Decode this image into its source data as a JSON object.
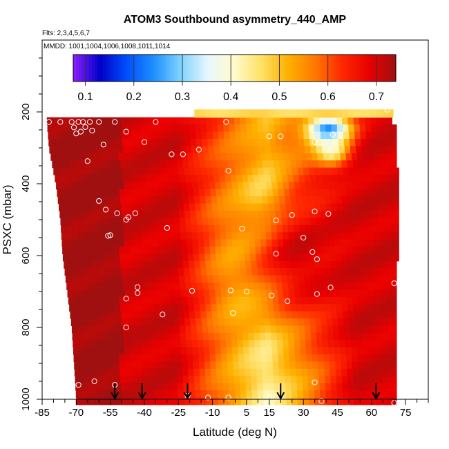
{
  "chart_data": {
    "type": "heatmap",
    "title": "ATOM3 Southbound asymmetry_440_AMP",
    "subtitle_flights": "Flts: 2,3,4,5,6,7",
    "subtitle_dates": "MMDD: 1001,1004,1006,1008,1011,1014",
    "xlabel": "Latitude (deg N)",
    "ylabel": "PSXC (mbar)",
    "xlim": [
      -85,
      85
    ],
    "ylim": [
      1000,
      0
    ],
    "x_ticks": [
      -85,
      -70,
      -55,
      -40,
      -25,
      -10,
      5,
      15,
      30,
      45,
      60,
      75
    ],
    "x_tick_labels": [
      "-85",
      "-70",
      "-55",
      "-40",
      "-25",
      "-10",
      "5",
      "15",
      "30",
      "45",
      "60",
      "75"
    ],
    "y_ticks": [
      200,
      400,
      600,
      800,
      1000
    ],
    "y_tick_labels": [
      "200",
      "400",
      "600",
      "800",
      "1000"
    ],
    "colorbar": {
      "range": [
        0.075,
        0.74
      ],
      "ticks": [
        0.1,
        0.2,
        0.3,
        0.4,
        0.5,
        0.6,
        0.7
      ],
      "tick_labels": [
        "0.1",
        "0.2",
        "0.3",
        "0.4",
        "0.5",
        "0.6",
        "0.7"
      ],
      "colors": [
        "#8c1eff",
        "#0000c8",
        "#0050ff",
        "#1e90ff",
        "#7fd3ff",
        "#e8f7ff",
        "#fffbcc",
        "#ffe066",
        "#ffb000",
        "#ff7800",
        "#ff2800",
        "#e80000",
        "#a01010"
      ]
    },
    "arrows_lat": [
      -53,
      -41,
      -21,
      20,
      62
    ],
    "cloud_min_lat_by_pressure": [
      [
        220,
        -83
      ],
      [
        300,
        -82
      ],
      [
        400,
        -79
      ],
      [
        500,
        -77
      ],
      [
        600,
        -76
      ],
      [
        700,
        -74
      ],
      [
        800,
        -72
      ],
      [
        900,
        -71
      ],
      [
        1000,
        -70
      ]
    ],
    "cloud_max_lat": 71,
    "field_anomalies": [
      {
        "lat": 42,
        "p": 250,
        "value": 0.08,
        "rx": 10,
        "rp": 40
      },
      {
        "lat": 44,
        "p": 310,
        "value": 0.22,
        "rx": 8,
        "rp": 45
      },
      {
        "lat": 14,
        "p": 450,
        "value": 0.38,
        "rx": 8,
        "rp": 60
      },
      {
        "lat": 10,
        "p": 640,
        "value": 0.47,
        "rx": 14,
        "rp": 120
      },
      {
        "lat": 30,
        "p": 600,
        "value": 0.7,
        "rx": 25,
        "rp": 200
      },
      {
        "lat": 60,
        "p": 500,
        "value": 0.7,
        "rx": 20,
        "rp": 300
      }
    ],
    "points": [
      [
        -82,
        228
      ],
      [
        -77,
        228
      ],
      [
        -72,
        228
      ],
      [
        -71,
        243
      ],
      [
        -70,
        260
      ],
      [
        -69,
        228
      ],
      [
        -68,
        255
      ],
      [
        -67,
        228
      ],
      [
        -66,
        242
      ],
      [
        -64,
        228
      ],
      [
        -63,
        252
      ],
      [
        -60,
        228
      ],
      [
        -58,
        291
      ],
      [
        -53,
        228
      ],
      [
        -48,
        255
      ],
      [
        -40,
        284
      ],
      [
        -35,
        228
      ],
      [
        -28,
        318
      ],
      [
        -23,
        318
      ],
      [
        -16,
        305
      ],
      [
        -4,
        228
      ],
      [
        -3,
        364
      ],
      [
        15,
        268
      ],
      [
        20,
        268
      ],
      [
        35,
        284
      ],
      [
        43,
        263
      ],
      [
        -65,
        337
      ],
      [
        -60,
        448
      ],
      [
        -57,
        472
      ],
      [
        -56,
        545
      ],
      [
        -52,
        482
      ],
      [
        -48,
        500
      ],
      [
        -47,
        493
      ],
      [
        -44,
        482
      ],
      [
        -30,
        523
      ],
      [
        -55,
        543
      ],
      [
        3,
        525
      ],
      [
        18,
        502
      ],
      [
        25,
        487
      ],
      [
        30,
        550
      ],
      [
        35,
        477
      ],
      [
        41,
        484
      ],
      [
        34,
        590
      ],
      [
        18,
        595
      ],
      [
        36,
        610
      ],
      [
        -43,
        688
      ],
      [
        -43,
        704
      ],
      [
        -48,
        720
      ],
      [
        -19,
        698
      ],
      [
        -2,
        697
      ],
      [
        5,
        700
      ],
      [
        16,
        711
      ],
      [
        23,
        727
      ],
      [
        36,
        707
      ],
      [
        42,
        689
      ],
      [
        70,
        677
      ],
      [
        -1,
        760
      ],
      [
        -32,
        764
      ],
      [
        -48,
        800
      ],
      [
        -62,
        950
      ],
      [
        -69,
        960
      ],
      [
        -53,
        960
      ],
      [
        -21,
        990
      ],
      [
        -12,
        995
      ],
      [
        -3,
        995
      ],
      [
        15,
        995
      ],
      [
        18,
        995
      ],
      [
        20,
        995
      ],
      [
        35,
        953
      ],
      [
        38,
        1005
      ],
      [
        70,
        1010
      ],
      [
        67,
        194
      ]
    ]
  }
}
